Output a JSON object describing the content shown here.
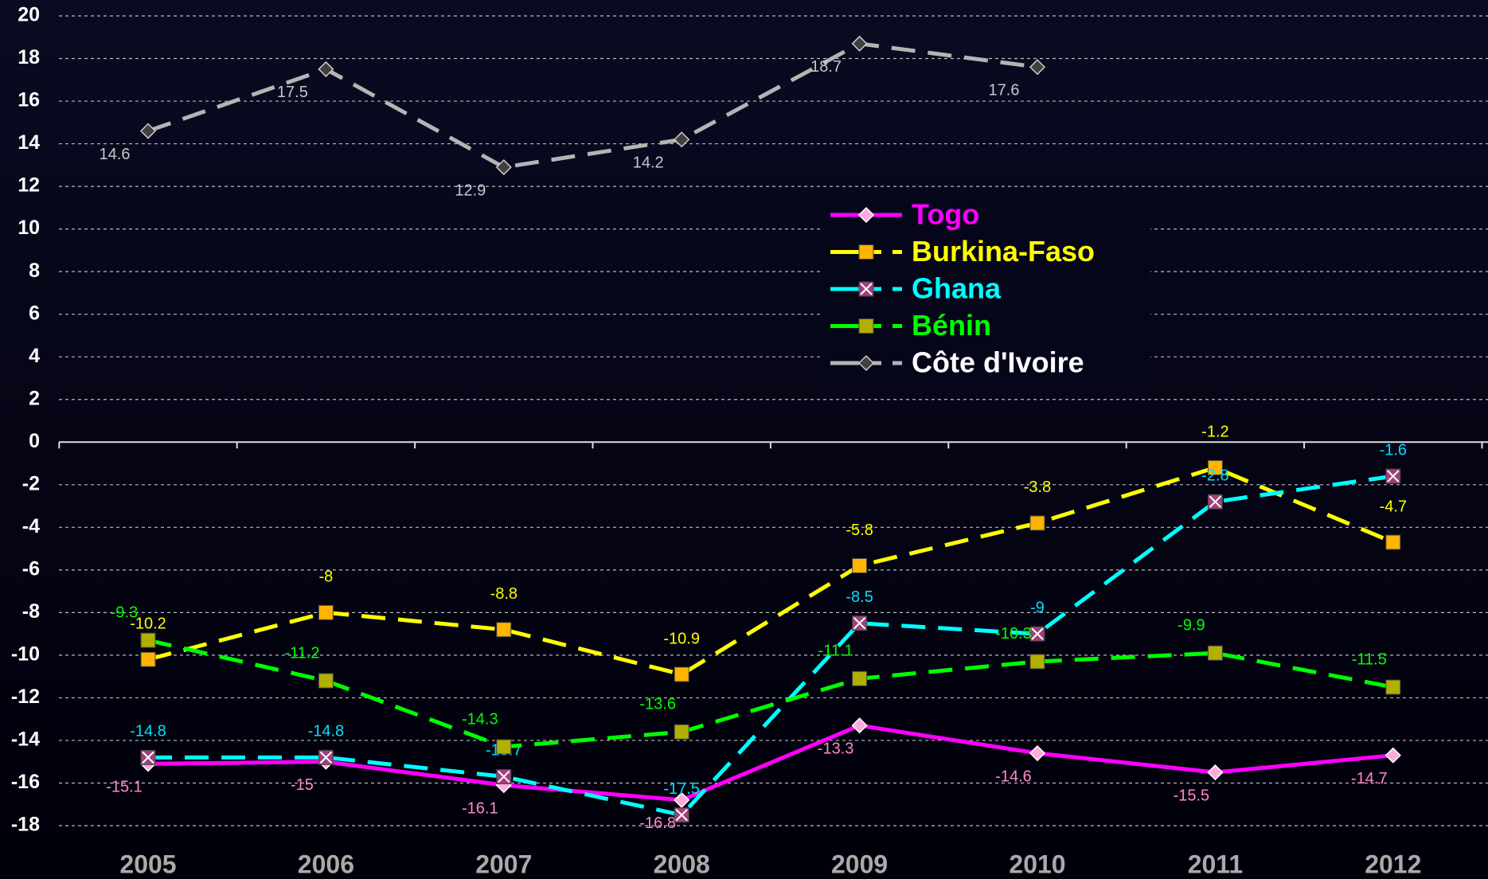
{
  "chart_data": {
    "type": "line",
    "categories": [
      "2005",
      "2006",
      "2007",
      "2008",
      "2009",
      "2010",
      "2011",
      "2012"
    ],
    "series": [
      {
        "name": "Togo",
        "color": "#ff00ff",
        "marker": "diamond",
        "marker_color": "#ffaadd",
        "label_color": "#ff88cc",
        "dash": "solid",
        "values": [
          -15.1,
          -15,
          -16.1,
          -16.8,
          -13.3,
          -14.6,
          -15.5,
          -14.7
        ]
      },
      {
        "name": "Burkina-Faso",
        "color": "#ffff00",
        "marker": "square",
        "marker_color": "#ffb400",
        "label_color": "#ffff00",
        "dash": "dashed",
        "values": [
          -10.2,
          -8,
          -8.8,
          -10.9,
          -5.8,
          -3.8,
          -1.2,
          -4.7
        ]
      },
      {
        "name": "Ghana",
        "color": "#00ffff",
        "marker": "cross-square",
        "marker_color": "#a0407a",
        "label_color": "#00e0ff",
        "dash": "dashed",
        "values": [
          -14.8,
          -14.8,
          -15.7,
          -17.5,
          -8.5,
          -9,
          -2.8,
          -1.6
        ]
      },
      {
        "name": "Bénin",
        "color": "#00ff00",
        "marker": "square",
        "marker_color": "#b0b000",
        "label_color": "#00ff00",
        "dash": "dashed",
        "values": [
          -9.3,
          -11.2,
          -14.3,
          -13.6,
          -11.1,
          -10.3,
          -9.9,
          -11.5
        ]
      },
      {
        "name": "Côte d'Ivoire",
        "color": "#b4b4b4",
        "marker": "diamond",
        "marker_color": "#404040",
        "label_color": "#c8c8c8",
        "dash": "dashed",
        "values": [
          14.6,
          17.5,
          12.9,
          14.2,
          18.7,
          17.6,
          null,
          null
        ]
      }
    ],
    "ylim": [
      -18,
      20
    ],
    "yticks": [
      -18,
      -16,
      -14,
      -12,
      -10,
      -8,
      -6,
      -4,
      -2,
      0,
      2,
      4,
      6,
      8,
      10,
      12,
      14,
      16,
      18,
      20
    ],
    "grid": true,
    "legend": "upper center"
  }
}
